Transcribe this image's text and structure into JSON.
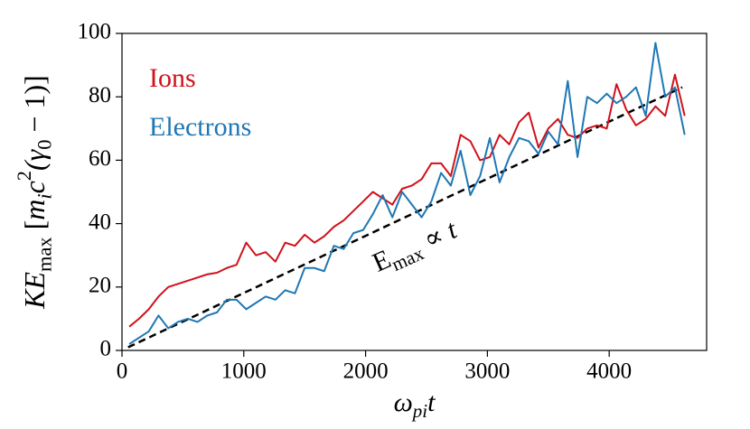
{
  "chart_data": {
    "type": "line",
    "x": [
      60,
      140,
      220,
      300,
      380,
      460,
      540,
      620,
      700,
      780,
      860,
      940,
      1020,
      1100,
      1180,
      1260,
      1340,
      1420,
      1500,
      1580,
      1660,
      1740,
      1820,
      1900,
      1980,
      2060,
      2140,
      2220,
      2300,
      2380,
      2460,
      2540,
      2620,
      2700,
      2780,
      2860,
      2940,
      3020,
      3100,
      3180,
      3260,
      3340,
      3420,
      3500,
      3580,
      3660,
      3740,
      3820,
      3900,
      3980,
      4060,
      4140,
      4220,
      4300,
      4380,
      4460,
      4540,
      4620
    ],
    "series": [
      {
        "name": "Ions",
        "color": "#d0111b",
        "values": [
          7.5,
          10,
          13,
          17,
          20,
          21,
          22,
          23,
          24,
          24.5,
          26,
          27,
          34,
          30,
          31,
          28,
          34,
          33,
          36.5,
          34,
          36,
          39,
          41,
          44,
          47,
          50,
          48,
          46,
          51,
          52,
          54,
          59,
          59,
          55,
          68,
          66,
          60,
          61,
          68,
          65,
          72,
          75,
          64,
          70,
          73,
          68,
          67,
          70,
          71,
          70,
          84,
          76,
          71,
          73,
          77,
          74,
          87,
          74
        ]
      },
      {
        "name": "Electrons",
        "color": "#1f77b4",
        "values": [
          2,
          4,
          6,
          11,
          7,
          9,
          10,
          9,
          11,
          12,
          16,
          16,
          13,
          15,
          17,
          16,
          19,
          18,
          26,
          26,
          25,
          33,
          32,
          37,
          38,
          43,
          49,
          42,
          50,
          46,
          42,
          47,
          56,
          52,
          63,
          49,
          55,
          67,
          53,
          61,
          67,
          66,
          62,
          69,
          65,
          85,
          61,
          80,
          78,
          81,
          78,
          80,
          83,
          74,
          97,
          80,
          83,
          68
        ]
      }
    ],
    "fit": {
      "x": [
        50,
        4600
      ],
      "values": [
        1,
        83
      ],
      "color": "#000000"
    },
    "annotation": [
      {
        "t": "E"
      },
      {
        "t": "max",
        "sub": true
      },
      {
        "t": " ∝ "
      },
      {
        "t": "t",
        "italic": true
      }
    ],
    "xlabel": [
      {
        "t": "ω",
        "italic": true
      },
      {
        "t": "pi",
        "sub": true,
        "italic": true
      },
      {
        "t": "t",
        "italic": true
      }
    ],
    "ylabel": [
      {
        "t": "KE",
        "italic": true
      },
      {
        "t": "max",
        "sub": true
      },
      {
        "t": " ["
      },
      {
        "t": "m",
        "italic": true
      },
      {
        "t": "i",
        "sub": true,
        "italic": true
      },
      {
        "t": "c",
        "italic": true
      },
      {
        "t": "2",
        "sup": true
      },
      {
        "t": "(γ",
        "italic": true
      },
      {
        "t": "0",
        "sub": true
      },
      {
        "t": " − 1)]"
      }
    ],
    "xlim": [
      0,
      4800
    ],
    "ylim": [
      0,
      100
    ],
    "xticks": [
      0,
      1000,
      2000,
      3000,
      4000
    ],
    "yticks": [
      0,
      20,
      40,
      60,
      80,
      100
    ],
    "grid": false,
    "legend": "upper left"
  }
}
